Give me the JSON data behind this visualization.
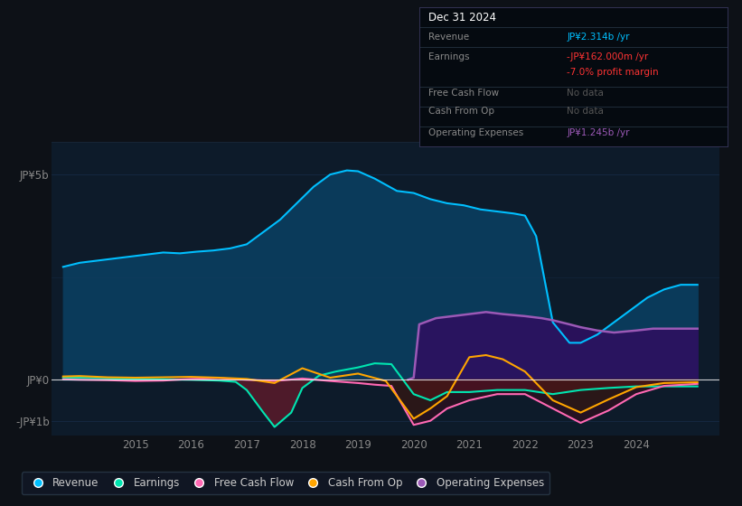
{
  "background_color": "#0d1117",
  "plot_bg_color": "#0d1b2a",
  "grid_color": "#1e3a5f",
  "ytick_labels": [
    "JP¥5b",
    "JP¥0",
    "-JP¥1b"
  ],
  "ytick_vals": [
    5000000000,
    0,
    -1000000000
  ],
  "xlim_start": 2013.5,
  "xlim_end": 2025.5,
  "ylim_min": -1350000000,
  "ylim_max": 5800000000,
  "xtick_years": [
    2015,
    2016,
    2017,
    2018,
    2019,
    2020,
    2021,
    2022,
    2023,
    2024
  ],
  "revenue_color": "#00bfff",
  "revenue_fill_color": "#0a3a5a",
  "earnings_color": "#00e5b0",
  "free_cash_flow_color": "#ff69b4",
  "cash_from_op_color": "#ffa500",
  "op_expenses_color": "#9b59b6",
  "op_expenses_fill_color": "#2d1060",
  "earnings_neg_fill": "#5a1a2a",
  "legend_bg": "#111827",
  "legend_text_color": "#cccccc",
  "tooltip_bg": "#050a10",
  "tooltip_title": "Dec 31 2024",
  "tooltip_revenue": "JP¥2.314b /yr",
  "tooltip_earnings": "-JP¥162.000m /yr",
  "tooltip_margin": "-7.0% profit margin",
  "tooltip_fcf": "No data",
  "tooltip_cashop": "No data",
  "tooltip_opex": "JP¥1.245b /yr",
  "revenue_color_tooltip": "#00bfff",
  "earnings_color_tooltip": "#ff3333",
  "margin_color_tooltip": "#ff3333",
  "opex_color_tooltip": "#9b59b6",
  "revenue_x": [
    2013.7,
    2014.0,
    2014.3,
    2014.6,
    2014.9,
    2015.2,
    2015.5,
    2015.8,
    2016.1,
    2016.4,
    2016.7,
    2017.0,
    2017.3,
    2017.6,
    2017.9,
    2018.2,
    2018.5,
    2018.8,
    2019.0,
    2019.3,
    2019.5,
    2019.7,
    2020.0,
    2020.3,
    2020.6,
    2020.9,
    2021.2,
    2021.5,
    2021.8,
    2022.0,
    2022.2,
    2022.5,
    2022.8,
    2023.0,
    2023.3,
    2023.6,
    2023.9,
    2024.2,
    2024.5,
    2024.8,
    2025.1
  ],
  "revenue_y": [
    2750000000,
    2850000000,
    2900000000,
    2950000000,
    3000000000,
    3050000000,
    3100000000,
    3080000000,
    3120000000,
    3150000000,
    3200000000,
    3300000000,
    3600000000,
    3900000000,
    4300000000,
    4700000000,
    5000000000,
    5100000000,
    5080000000,
    4900000000,
    4750000000,
    4600000000,
    4550000000,
    4400000000,
    4300000000,
    4250000000,
    4150000000,
    4100000000,
    4050000000,
    4000000000,
    3500000000,
    1400000000,
    900000000,
    900000000,
    1100000000,
    1400000000,
    1700000000,
    2000000000,
    2200000000,
    2314000000,
    2314000000
  ],
  "earnings_x": [
    2013.7,
    2014.0,
    2014.5,
    2015.0,
    2015.5,
    2016.0,
    2016.5,
    2016.8,
    2017.0,
    2017.3,
    2017.5,
    2017.8,
    2018.0,
    2018.3,
    2018.6,
    2019.0,
    2019.3,
    2019.6,
    2020.0,
    2020.3,
    2020.6,
    2021.0,
    2021.5,
    2022.0,
    2022.5,
    2023.0,
    2023.5,
    2024.0,
    2024.5,
    2025.1
  ],
  "earnings_y": [
    50000000,
    50000000,
    30000000,
    20000000,
    10000000,
    0,
    -20000000,
    -50000000,
    -250000000,
    -800000000,
    -1150000000,
    -800000000,
    -200000000,
    100000000,
    200000000,
    300000000,
    400000000,
    380000000,
    -350000000,
    -500000000,
    -300000000,
    -300000000,
    -250000000,
    -250000000,
    -350000000,
    -250000000,
    -200000000,
    -162000000,
    -162000000,
    -162000000
  ],
  "fcf_x": [
    2013.7,
    2014.0,
    2014.5,
    2015.0,
    2015.5,
    2016.0,
    2016.5,
    2017.0,
    2017.5,
    2018.0,
    2018.5,
    2019.0,
    2019.3,
    2019.6,
    2020.0,
    2020.3,
    2020.6,
    2021.0,
    2021.5,
    2022.0,
    2022.5,
    2023.0,
    2023.5,
    2024.0,
    2024.5,
    2025.1
  ],
  "fcf_y": [
    10000000,
    0,
    -10000000,
    -30000000,
    -20000000,
    20000000,
    40000000,
    0,
    -30000000,
    30000000,
    -30000000,
    -80000000,
    -120000000,
    -150000000,
    -1100000000,
    -1000000000,
    -700000000,
    -500000000,
    -350000000,
    -350000000,
    -700000000,
    -1050000000,
    -750000000,
    -350000000,
    -150000000,
    -100000000
  ],
  "cashop_x": [
    2013.7,
    2014.0,
    2014.5,
    2015.0,
    2015.5,
    2016.0,
    2016.5,
    2017.0,
    2017.5,
    2018.0,
    2018.5,
    2019.0,
    2019.5,
    2020.0,
    2020.3,
    2020.6,
    2021.0,
    2021.3,
    2021.6,
    2022.0,
    2022.5,
    2023.0,
    2023.5,
    2024.0,
    2024.5,
    2025.1
  ],
  "cashop_y": [
    80000000,
    90000000,
    60000000,
    50000000,
    60000000,
    70000000,
    50000000,
    20000000,
    -80000000,
    280000000,
    50000000,
    150000000,
    -30000000,
    -950000000,
    -700000000,
    -400000000,
    550000000,
    600000000,
    500000000,
    200000000,
    -500000000,
    -800000000,
    -480000000,
    -180000000,
    -80000000,
    -60000000
  ],
  "opex_x": [
    2019.9,
    2020.0,
    2020.1,
    2020.4,
    2020.7,
    2021.0,
    2021.3,
    2021.6,
    2022.0,
    2022.3,
    2022.5,
    2022.8,
    2023.0,
    2023.3,
    2023.6,
    2024.0,
    2024.3,
    2024.6,
    2024.9,
    2025.1
  ],
  "opex_y": [
    0,
    50000000,
    1350000000,
    1500000000,
    1550000000,
    1600000000,
    1650000000,
    1600000000,
    1550000000,
    1500000000,
    1450000000,
    1350000000,
    1280000000,
    1200000000,
    1150000000,
    1200000000,
    1245000000,
    1245000000,
    1245000000,
    1245000000
  ],
  "legend_entries": [
    {
      "label": "Revenue",
      "color": "#00bfff"
    },
    {
      "label": "Earnings",
      "color": "#00e5b0"
    },
    {
      "label": "Free Cash Flow",
      "color": "#ff69b4"
    },
    {
      "label": "Cash From Op",
      "color": "#ffa500"
    },
    {
      "label": "Operating Expenses",
      "color": "#9b59b6"
    }
  ]
}
